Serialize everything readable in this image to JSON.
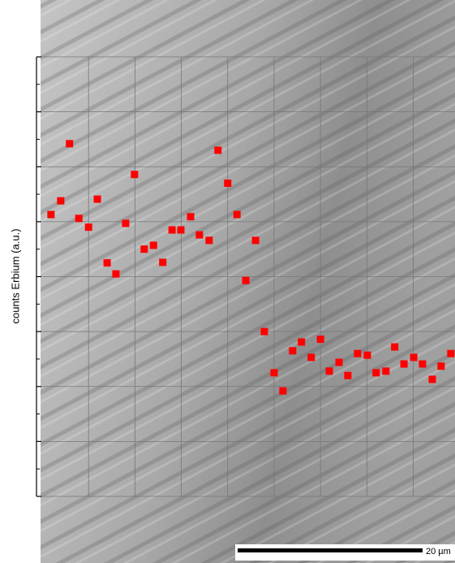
{
  "chart_data": {
    "type": "scatter",
    "ylabel": "counts Erbium (a.u.)",
    "scale_bar_label": "20 µm",
    "color": "#ff0000",
    "grid": true,
    "xlim": [
      0,
      8.9
    ],
    "ylim": [
      0,
      8
    ],
    "xticks": [
      1,
      2,
      3,
      4,
      5,
      6,
      7,
      8
    ],
    "yticks": [
      0,
      1,
      2,
      3,
      4,
      5,
      6,
      7,
      8
    ],
    "yminorticks": [
      0.5,
      1.5,
      2.5,
      3.5,
      4.5,
      5.5,
      6.5,
      7.5
    ],
    "series": [
      {
        "name": "Erbium",
        "x": [
          0.19,
          0.4,
          0.59,
          0.79,
          1.0,
          1.19,
          1.4,
          1.59,
          1.8,
          1.99,
          2.2,
          2.4,
          2.6,
          2.8,
          2.99,
          3.2,
          3.39,
          3.6,
          3.79,
          4.0,
          4.2,
          4.39,
          4.6,
          4.79,
          5.0,
          5.19,
          5.4,
          5.59,
          5.8,
          6.0,
          6.19,
          6.4,
          6.59,
          6.8,
          7.01,
          7.2,
          7.41,
          7.6,
          7.8,
          8.01,
          8.2,
          8.41,
          8.6,
          8.81
        ],
        "values": [
          5.13,
          5.38,
          6.42,
          5.06,
          4.9,
          5.41,
          4.25,
          4.05,
          4.97,
          5.86,
          4.5,
          4.57,
          4.26,
          4.85,
          4.85,
          5.09,
          4.76,
          4.66,
          6.3,
          5.7,
          5.13,
          3.93,
          4.66,
          3.0,
          2.25,
          1.92,
          2.65,
          2.81,
          2.53,
          2.86,
          2.28,
          2.44,
          2.2,
          2.6,
          2.57,
          2.25,
          2.28,
          2.72,
          2.41,
          2.53,
          2.41,
          2.13,
          2.37,
          2.6
        ]
      }
    ]
  }
}
